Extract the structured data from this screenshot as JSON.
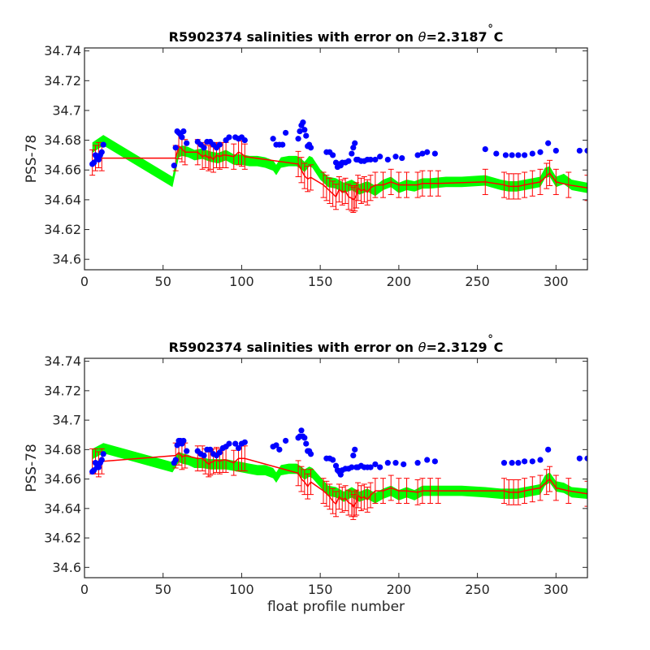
{
  "chart_data": [
    {
      "type": "scatter",
      "title_prefix": "R5902374 salinities with error on ",
      "title_theta": "θ",
      "title_suffix": "=2.3187",
      "title_degree": "˚",
      "title_unit": "C",
      "xlabel": "",
      "ylabel": "PSS-78",
      "xlim": [
        0,
        320
      ],
      "ylim": [
        34.593,
        34.742
      ],
      "xticks": [
        0,
        50,
        100,
        150,
        200,
        250,
        300
      ],
      "yticks": [
        34.6,
        34.62,
        34.64,
        34.66,
        34.68,
        34.7,
        34.72,
        34.74
      ],
      "yticklabels": [
        "34.6",
        "34.62",
        "34.64",
        "34.66",
        "34.68",
        "34.7",
        "34.72",
        "34.74"
      ],
      "grid": false,
      "series": [
        {
          "kind": "float-salinity-points",
          "color": "#0000ff",
          "x": [
            5,
            6,
            7,
            8,
            9,
            10,
            11,
            12,
            57,
            58,
            59,
            60,
            61,
            62,
            63,
            65,
            72,
            74,
            76,
            78,
            80,
            82,
            84,
            86,
            90,
            92,
            96,
            98,
            100,
            102,
            120,
            122,
            124,
            126,
            128,
            136,
            137,
            138,
            139,
            140,
            141,
            142,
            143,
            144,
            154,
            156,
            158,
            160,
            161,
            162,
            163,
            164,
            166,
            168,
            170,
            171,
            172,
            173,
            174,
            176,
            178,
            180,
            182,
            185,
            188,
            193,
            198,
            202,
            212,
            215,
            218,
            223,
            255,
            262,
            268,
            272,
            276,
            280,
            285,
            290,
            295,
            300,
            315,
            320
          ],
          "y": [
            34.664,
            34.665,
            34.67,
            34.668,
            34.667,
            34.67,
            34.672,
            34.677,
            34.663,
            34.675,
            34.686,
            34.685,
            34.684,
            34.682,
            34.686,
            34.678,
            34.679,
            34.677,
            34.675,
            34.679,
            34.679,
            34.677,
            34.675,
            34.677,
            34.68,
            34.682,
            34.682,
            34.681,
            34.682,
            34.68,
            34.681,
            34.677,
            34.677,
            34.677,
            34.685,
            34.681,
            34.686,
            34.69,
            34.692,
            34.687,
            34.683,
            34.676,
            34.677,
            34.675,
            34.672,
            34.672,
            34.67,
            34.665,
            34.662,
            34.664,
            34.663,
            34.665,
            34.665,
            34.666,
            34.671,
            34.675,
            34.678,
            34.667,
            34.667,
            34.666,
            34.666,
            34.667,
            34.667,
            34.667,
            34.669,
            34.667,
            34.669,
            34.668,
            34.67,
            34.671,
            34.672,
            34.671,
            34.674,
            34.671,
            34.67,
            34.67,
            34.67,
            34.67,
            34.671,
            34.672,
            34.678,
            34.673,
            34.673,
            34.673
          ]
        },
        {
          "kind": "mapped-salinity-band",
          "color": "#00ff00",
          "x": [
            5,
            12,
            56,
            60,
            62,
            66,
            70,
            75,
            80,
            85,
            90,
            95,
            100,
            105,
            110,
            115,
            120,
            122,
            125,
            130,
            135,
            138,
            140,
            143,
            145,
            150,
            155,
            160,
            165,
            170,
            175,
            180,
            185,
            190,
            195,
            200,
            205,
            210,
            215,
            220,
            230,
            240,
            255,
            265,
            270,
            275,
            280,
            285,
            290,
            293,
            296,
            300,
            305,
            310,
            320
          ],
          "y": [
            34.675,
            34.68,
            34.652,
            34.672,
            34.673,
            34.672,
            34.67,
            34.671,
            34.669,
            34.668,
            34.67,
            34.667,
            34.667,
            34.666,
            34.666,
            34.665,
            34.663,
            34.66,
            34.665,
            34.666,
            34.666,
            34.664,
            34.662,
            34.666,
            34.665,
            34.657,
            34.652,
            34.651,
            34.648,
            34.65,
            34.647,
            34.649,
            34.646,
            34.65,
            34.652,
            34.648,
            34.65,
            34.649,
            34.651,
            34.651,
            34.652,
            34.652,
            34.653,
            34.65,
            34.649,
            34.649,
            34.65,
            34.651,
            34.652,
            34.658,
            34.659,
            34.652,
            34.654,
            34.65,
            34.648
          ],
          "halfwidth": 0.0035
        },
        {
          "kind": "calibrated-salinity-with-error",
          "color": "#ff0000",
          "x": [
            5,
            7,
            9,
            11,
            58,
            60,
            62,
            64,
            72,
            75,
            77,
            79,
            80,
            82,
            84,
            86,
            88,
            90,
            95,
            98,
            100,
            102,
            136,
            138,
            140,
            142,
            144,
            152,
            154,
            156,
            158,
            160,
            162,
            164,
            166,
            168,
            170,
            171,
            172,
            173,
            174,
            176,
            178,
            180,
            182,
            185,
            190,
            195,
            200,
            205,
            212,
            215,
            220,
            225,
            255,
            267,
            270,
            273,
            276,
            280,
            285,
            290,
            294,
            296,
            300,
            308,
            320
          ],
          "y": [
            34.665,
            34.668,
            34.67,
            34.668,
            34.668,
            34.676,
            34.674,
            34.672,
            34.672,
            34.669,
            34.67,
            34.668,
            34.669,
            34.667,
            34.67,
            34.669,
            34.67,
            34.67,
            34.669,
            34.672,
            34.671,
            34.669,
            34.664,
            34.66,
            34.656,
            34.654,
            34.655,
            34.65,
            34.648,
            34.646,
            34.644,
            34.642,
            34.647,
            34.645,
            34.646,
            34.642,
            34.641,
            34.64,
            34.641,
            34.643,
            34.648,
            34.646,
            34.647,
            34.645,
            34.648,
            34.65,
            34.65,
            34.652,
            34.65,
            34.65,
            34.65,
            34.651,
            34.651,
            34.651,
            34.652,
            34.65,
            34.649,
            34.649,
            34.649,
            34.65,
            34.651,
            34.652,
            34.656,
            34.658,
            34.652,
            34.65,
            34.648
          ],
          "err": 0.0085
        }
      ]
    },
    {
      "type": "scatter",
      "title_prefix": "R5902374 salinities with error on ",
      "title_theta": "θ",
      "title_suffix": "=2.3129",
      "title_degree": "˚",
      "title_unit": "C",
      "xlabel": "float profile number",
      "ylabel": "PSS-78",
      "xlim": [
        0,
        320
      ],
      "ylim": [
        34.593,
        34.742
      ],
      "xticks": [
        0,
        50,
        100,
        150,
        200,
        250,
        300
      ],
      "yticks": [
        34.6,
        34.62,
        34.64,
        34.66,
        34.68,
        34.7,
        34.72,
        34.74
      ],
      "yticklabels": [
        "34.6",
        "34.62",
        "34.64",
        "34.66",
        "34.68",
        "34.7",
        "34.72",
        "34.74"
      ],
      "grid": false,
      "series": [
        {
          "kind": "float-salinity-points",
          "color": "#0000ff",
          "x": [
            5,
            6,
            7,
            8,
            9,
            10,
            11,
            12,
            57,
            58,
            59,
            60,
            61,
            62,
            63,
            65,
            72,
            74,
            76,
            78,
            80,
            82,
            84,
            86,
            88,
            90,
            92,
            96,
            98,
            100,
            102,
            120,
            122,
            124,
            128,
            136,
            137,
            138,
            139,
            140,
            141,
            142,
            143,
            144,
            154,
            156,
            158,
            160,
            161,
            162,
            163,
            164,
            166,
            168,
            170,
            171,
            172,
            173,
            174,
            176,
            178,
            180,
            182,
            185,
            188,
            193,
            198,
            203,
            212,
            218,
            223,
            267,
            272,
            276,
            280,
            285,
            290,
            295,
            315,
            320
          ],
          "y": [
            34.665,
            34.666,
            34.671,
            34.668,
            34.668,
            34.671,
            34.673,
            34.677,
            34.671,
            34.673,
            34.683,
            34.686,
            34.686,
            34.684,
            34.686,
            34.679,
            34.679,
            34.677,
            34.676,
            34.68,
            34.68,
            34.677,
            34.676,
            34.678,
            34.681,
            34.682,
            34.684,
            34.684,
            34.681,
            34.684,
            34.685,
            34.682,
            34.683,
            34.68,
            34.686,
            34.688,
            34.689,
            34.693,
            34.689,
            34.688,
            34.684,
            34.679,
            34.679,
            34.677,
            34.674,
            34.674,
            34.673,
            34.669,
            34.666,
            34.665,
            34.663,
            34.666,
            34.667,
            34.667,
            34.668,
            34.676,
            34.68,
            34.668,
            34.668,
            34.669,
            34.668,
            34.668,
            34.668,
            34.67,
            34.668,
            34.671,
            34.671,
            34.67,
            34.671,
            34.673,
            34.672,
            34.671,
            34.671,
            34.671,
            34.672,
            34.672,
            34.673,
            34.68,
            34.674,
            34.674
          ]
        },
        {
          "kind": "mapped-salinity-band",
          "color": "#00ff00",
          "x": [
            5,
            12,
            56,
            60,
            62,
            66,
            70,
            75,
            80,
            85,
            90,
            95,
            100,
            105,
            110,
            115,
            120,
            122,
            125,
            130,
            135,
            138,
            140,
            143,
            145,
            150,
            155,
            160,
            165,
            170,
            175,
            180,
            185,
            190,
            195,
            200,
            205,
            210,
            215,
            220,
            230,
            240,
            255,
            265,
            270,
            275,
            280,
            285,
            290,
            293,
            296,
            300,
            305,
            310,
            320
          ],
          "y": [
            34.677,
            34.681,
            34.668,
            34.675,
            34.674,
            34.673,
            34.671,
            34.671,
            34.67,
            34.67,
            34.67,
            34.669,
            34.668,
            34.667,
            34.666,
            34.666,
            34.664,
            34.661,
            34.666,
            34.667,
            34.667,
            34.665,
            34.663,
            34.665,
            34.664,
            34.658,
            34.652,
            34.651,
            34.648,
            34.651,
            34.648,
            34.65,
            34.647,
            34.65,
            34.652,
            34.649,
            34.651,
            34.649,
            34.652,
            34.652,
            34.652,
            34.652,
            34.651,
            34.65,
            34.65,
            34.65,
            34.651,
            34.652,
            34.653,
            34.659,
            34.661,
            34.655,
            34.654,
            34.651,
            34.65
          ],
          "halfwidth": 0.0035
        },
        {
          "kind": "calibrated-salinity-with-error",
          "color": "#ff0000",
          "x": [
            5,
            7,
            9,
            11,
            58,
            60,
            62,
            64,
            72,
            75,
            77,
            79,
            80,
            82,
            84,
            86,
            88,
            90,
            95,
            98,
            100,
            102,
            136,
            138,
            140,
            142,
            144,
            152,
            154,
            156,
            158,
            160,
            162,
            164,
            166,
            168,
            170,
            171,
            172,
            173,
            174,
            176,
            178,
            180,
            182,
            185,
            190,
            195,
            200,
            205,
            212,
            215,
            220,
            225,
            267,
            270,
            273,
            276,
            280,
            285,
            290,
            294,
            296,
            300,
            308,
            320
          ],
          "y": [
            34.672,
            34.672,
            34.67,
            34.672,
            34.676,
            34.678,
            34.675,
            34.676,
            34.674,
            34.674,
            34.672,
            34.67,
            34.671,
            34.672,
            34.673,
            34.672,
            34.673,
            34.673,
            34.671,
            34.674,
            34.674,
            34.674,
            34.664,
            34.66,
            34.658,
            34.655,
            34.658,
            34.652,
            34.65,
            34.648,
            34.645,
            34.643,
            34.648,
            34.646,
            34.647,
            34.644,
            34.643,
            34.641,
            34.643,
            34.644,
            34.649,
            34.647,
            34.648,
            34.646,
            34.649,
            34.652,
            34.652,
            34.654,
            34.652,
            34.652,
            34.651,
            34.652,
            34.652,
            34.652,
            34.652,
            34.651,
            34.651,
            34.651,
            34.652,
            34.653,
            34.654,
            34.658,
            34.66,
            34.654,
            34.652,
            34.65
          ],
          "err": 0.0085
        }
      ]
    }
  ]
}
